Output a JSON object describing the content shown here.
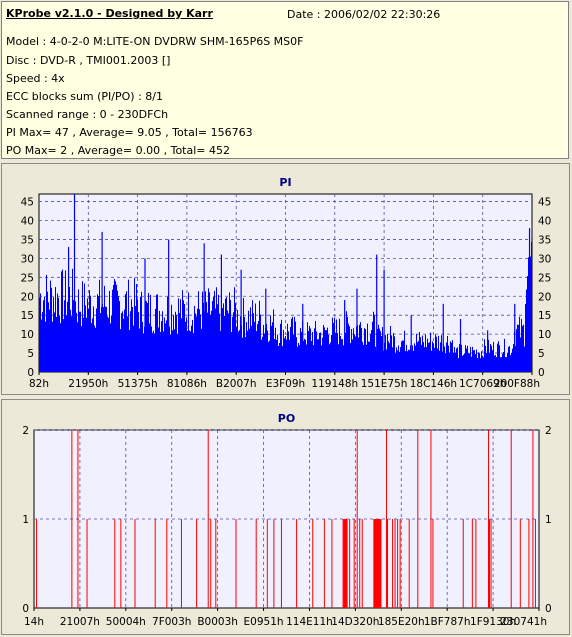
{
  "info": {
    "title": "KProbe v2.1.0 - Designed by Karr",
    "date": "Date : 2006/02/02 22:30:26",
    "lines": [
      "Model : 4-0-2-0 M:LITE-ON DVDRW SHM-165P6S MS0F",
      "Disc : DVD-R , TMI001.2003 []",
      "Speed : 4x",
      "ECC blocks sum (PI/PO) : 8/1",
      "Scanned range : 0 - 230DFCh",
      "PI Max= 47 , Average= 9.05 , Total= 156763",
      "PO Max= 2 , Average= 0.00 , Total= 452"
    ]
  },
  "colors": {
    "pi_bar": "#0000FF",
    "po_bar": "#FF0000",
    "plot_bg": "#F0F0FF",
    "grid": "#5050A0",
    "info_bg": "#FFFFE1",
    "window_bg": "#ECE9D8",
    "title_color": "#000080"
  },
  "chart_data": [
    {
      "type": "bar",
      "title": "PI",
      "ylim": [
        0,
        47
      ],
      "yticks": [
        0,
        5,
        10,
        15,
        20,
        25,
        30,
        35,
        40,
        45
      ],
      "xticks": [
        "82h",
        "21950h",
        "51375h",
        "81086h",
        "B2007h",
        "E3F09h",
        "119148h",
        "151E75h",
        "18C146h",
        "1C7069h",
        "200F88h"
      ],
      "grid": true,
      "segments": [
        {
          "from": 0.0,
          "to": 0.07,
          "value": 22
        },
        {
          "from": 0.07,
          "to": 0.2,
          "value": 20
        },
        {
          "from": 0.2,
          "to": 0.4,
          "value": 18
        },
        {
          "from": 0.4,
          "to": 0.45,
          "value": 16
        },
        {
          "from": 0.45,
          "to": 0.48,
          "value": 14
        },
        {
          "from": 0.48,
          "to": 0.52,
          "value": 12
        },
        {
          "from": 0.52,
          "to": 0.58,
          "value": 11
        },
        {
          "from": 0.58,
          "to": 0.62,
          "value": 12
        },
        {
          "from": 0.62,
          "to": 0.68,
          "value": 13
        },
        {
          "from": 0.68,
          "to": 0.72,
          "value": 10
        },
        {
          "from": 0.72,
          "to": 0.76,
          "value": 9
        },
        {
          "from": 0.76,
          "to": 0.84,
          "value": 9
        },
        {
          "from": 0.84,
          "to": 0.9,
          "value": 6
        },
        {
          "from": 0.9,
          "to": 0.96,
          "value": 7
        },
        {
          "from": 0.96,
          "to": 0.985,
          "value": 12
        },
        {
          "from": 0.985,
          "to": 1.0,
          "value": 28
        }
      ],
      "peaks": [
        {
          "x": 0.072,
          "value": 47
        },
        {
          "x": 0.06,
          "value": 33
        },
        {
          "x": 0.128,
          "value": 37
        },
        {
          "x": 0.215,
          "value": 30
        },
        {
          "x": 0.263,
          "value": 35
        },
        {
          "x": 0.335,
          "value": 34
        },
        {
          "x": 0.37,
          "value": 31
        },
        {
          "x": 0.41,
          "value": 27
        },
        {
          "x": 0.46,
          "value": 22
        },
        {
          "x": 0.535,
          "value": 18
        },
        {
          "x": 0.62,
          "value": 19
        },
        {
          "x": 0.645,
          "value": 22
        },
        {
          "x": 0.685,
          "value": 31
        },
        {
          "x": 0.7,
          "value": 27
        },
        {
          "x": 0.755,
          "value": 15
        },
        {
          "x": 0.82,
          "value": 18
        },
        {
          "x": 0.855,
          "value": 14
        },
        {
          "x": 0.91,
          "value": 11
        },
        {
          "x": 0.965,
          "value": 18
        },
        {
          "x": 0.995,
          "value": 38
        }
      ]
    },
    {
      "type": "bar",
      "title": "PO",
      "ylim": [
        0,
        2
      ],
      "yticks": [
        0,
        1,
        2
      ],
      "xticks": [
        "14h",
        "21007h",
        "50004h",
        "7F003h",
        "B0003h",
        "E0951h",
        "114E11h",
        "14D320h",
        "185E20h",
        "1BF787h",
        "1F9130h",
        "230741h"
      ],
      "grid": true,
      "spikes": [
        {
          "x": 0.005,
          "value": 1
        },
        {
          "x": 0.075,
          "value": 2
        },
        {
          "x": 0.087,
          "value": 2
        },
        {
          "x": 0.105,
          "value": 1
        },
        {
          "x": 0.16,
          "value": 1
        },
        {
          "x": 0.172,
          "value": 1
        },
        {
          "x": 0.2,
          "value": 1
        },
        {
          "x": 0.24,
          "value": 1
        },
        {
          "x": 0.263,
          "value": 1
        },
        {
          "x": 0.292,
          "value": 1
        },
        {
          "x": 0.322,
          "value": 1
        },
        {
          "x": 0.345,
          "value": 2
        },
        {
          "x": 0.35,
          "value": 1
        },
        {
          "x": 0.36,
          "value": 1
        },
        {
          "x": 0.4,
          "value": 1
        },
        {
          "x": 0.44,
          "value": 1
        },
        {
          "x": 0.462,
          "value": 1
        },
        {
          "x": 0.475,
          "value": 1
        },
        {
          "x": 0.49,
          "value": 1
        },
        {
          "x": 0.52,
          "value": 1
        },
        {
          "x": 0.552,
          "value": 1
        },
        {
          "x": 0.575,
          "value": 1
        },
        {
          "x": 0.59,
          "value": 1
        },
        {
          "x": 0.612,
          "value": 1
        },
        {
          "x": 0.625,
          "value": 1
        },
        {
          "x": 0.634,
          "value": 1
        },
        {
          "x": 0.64,
          "value": 2
        },
        {
          "x": 0.645,
          "value": 1
        },
        {
          "x": 0.65,
          "value": 1
        },
        {
          "x": 0.698,
          "value": 2
        },
        {
          "x": 0.7,
          "value": 1
        },
        {
          "x": 0.71,
          "value": 1
        },
        {
          "x": 0.715,
          "value": 1
        },
        {
          "x": 0.72,
          "value": 1
        },
        {
          "x": 0.725,
          "value": 1
        },
        {
          "x": 0.743,
          "value": 1
        },
        {
          "x": 0.76,
          "value": 2
        },
        {
          "x": 0.786,
          "value": 2
        },
        {
          "x": 0.79,
          "value": 1
        },
        {
          "x": 0.85,
          "value": 1
        },
        {
          "x": 0.868,
          "value": 1
        },
        {
          "x": 0.875,
          "value": 1
        },
        {
          "x": 0.9,
          "value": 2
        },
        {
          "x": 0.902,
          "value": 1
        },
        {
          "x": 0.905,
          "value": 1
        },
        {
          "x": 0.945,
          "value": 2
        },
        {
          "x": 0.963,
          "value": 1
        },
        {
          "x": 0.98,
          "value": 1
        },
        {
          "x": 0.988,
          "value": 2
        },
        {
          "x": 0.993,
          "value": 1
        }
      ]
    }
  ]
}
